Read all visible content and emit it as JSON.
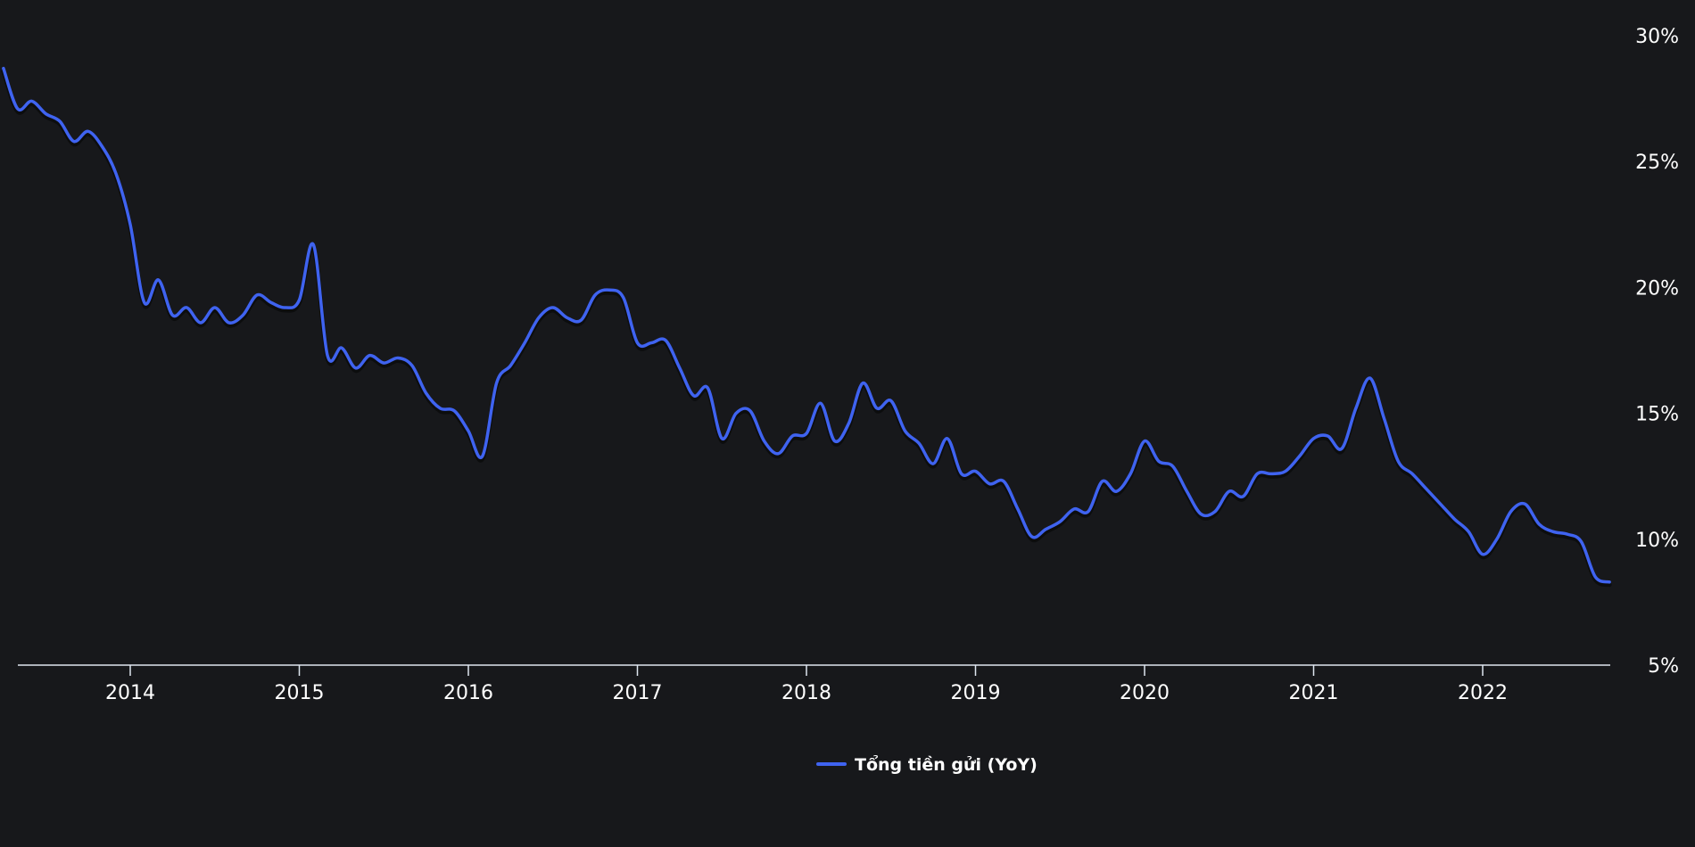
{
  "chart_data": {
    "type": "line",
    "x_axis": {
      "type": "date",
      "range": [
        "2013-04",
        "2022-10"
      ],
      "tick_labels": [
        "2014",
        "2015",
        "2016",
        "2017",
        "2018",
        "2019",
        "2020",
        "2021",
        "2022"
      ]
    },
    "y_axis": {
      "position": "right",
      "range": [
        5,
        30
      ],
      "ticks": [
        5,
        10,
        15,
        20,
        25,
        30
      ],
      "tick_labels": [
        "5%",
        "10%",
        "15%",
        "20%",
        "25%",
        "30%"
      ]
    },
    "grid": false,
    "legend": {
      "placement": "bottom-center"
    },
    "series": [
      {
        "name": "Tổng tiền gửi (YoY)",
        "color": "#3f63f0",
        "points": [
          [
            "2013-04",
            28.7
          ],
          [
            "2013-05",
            27.1
          ],
          [
            "2013-06",
            27.4
          ],
          [
            "2013-07",
            26.9
          ],
          [
            "2013-08",
            26.6
          ],
          [
            "2013-09",
            25.8
          ],
          [
            "2013-10",
            26.2
          ],
          [
            "2013-11",
            25.6
          ],
          [
            "2013-12",
            24.5
          ],
          [
            "2014-01",
            22.5
          ],
          [
            "2014-02",
            19.4
          ],
          [
            "2014-03",
            20.3
          ],
          [
            "2014-04",
            18.9
          ],
          [
            "2014-05",
            19.2
          ],
          [
            "2014-06",
            18.6
          ],
          [
            "2014-07",
            19.2
          ],
          [
            "2014-08",
            18.6
          ],
          [
            "2014-09",
            18.9
          ],
          [
            "2014-10",
            19.7
          ],
          [
            "2014-11",
            19.4
          ],
          [
            "2014-12",
            19.2
          ],
          [
            "2015-01",
            19.5
          ],
          [
            "2015-02",
            21.7
          ],
          [
            "2015-03",
            17.3
          ],
          [
            "2015-04",
            17.6
          ],
          [
            "2015-05",
            16.8
          ],
          [
            "2015-06",
            17.3
          ],
          [
            "2015-07",
            17.0
          ],
          [
            "2015-08",
            17.2
          ],
          [
            "2015-09",
            16.9
          ],
          [
            "2015-10",
            15.8
          ],
          [
            "2015-11",
            15.2
          ],
          [
            "2015-12",
            15.1
          ],
          [
            "2016-01",
            14.3
          ],
          [
            "2016-02",
            13.3
          ],
          [
            "2016-03",
            16.2
          ],
          [
            "2016-04",
            16.9
          ],
          [
            "2016-05",
            17.8
          ],
          [
            "2016-06",
            18.8
          ],
          [
            "2016-07",
            19.2
          ],
          [
            "2016-08",
            18.8
          ],
          [
            "2016-09",
            18.7
          ],
          [
            "2016-10",
            19.7
          ],
          [
            "2016-11",
            19.9
          ],
          [
            "2016-12",
            19.6
          ],
          [
            "2017-01",
            17.8
          ],
          [
            "2017-02",
            17.8
          ],
          [
            "2017-03",
            17.9
          ],
          [
            "2017-04",
            16.8
          ],
          [
            "2017-05",
            15.7
          ],
          [
            "2017-06",
            16.0
          ],
          [
            "2017-07",
            14.0
          ],
          [
            "2017-08",
            15.0
          ],
          [
            "2017-09",
            15.1
          ],
          [
            "2017-10",
            13.9
          ],
          [
            "2017-11",
            13.4
          ],
          [
            "2017-12",
            14.1
          ],
          [
            "2018-01",
            14.2
          ],
          [
            "2018-02",
            15.4
          ],
          [
            "2018-03",
            13.9
          ],
          [
            "2018-04",
            14.6
          ],
          [
            "2018-05",
            16.2
          ],
          [
            "2018-06",
            15.2
          ],
          [
            "2018-07",
            15.5
          ],
          [
            "2018-08",
            14.3
          ],
          [
            "2018-09",
            13.8
          ],
          [
            "2018-10",
            13.0
          ],
          [
            "2018-11",
            14.0
          ],
          [
            "2018-12",
            12.6
          ],
          [
            "2019-01",
            12.7
          ],
          [
            "2019-02",
            12.2
          ],
          [
            "2019-03",
            12.3
          ],
          [
            "2019-04",
            11.2
          ],
          [
            "2019-05",
            10.1
          ],
          [
            "2019-06",
            10.4
          ],
          [
            "2019-07",
            10.7
          ],
          [
            "2019-08",
            11.2
          ],
          [
            "2019-09",
            11.1
          ],
          [
            "2019-10",
            12.3
          ],
          [
            "2019-11",
            11.9
          ],
          [
            "2019-12",
            12.6
          ],
          [
            "2020-01",
            13.9
          ],
          [
            "2020-02",
            13.1
          ],
          [
            "2020-03",
            12.9
          ],
          [
            "2020-04",
            11.9
          ],
          [
            "2020-05",
            11.0
          ],
          [
            "2020-06",
            11.1
          ],
          [
            "2020-07",
            11.9
          ],
          [
            "2020-08",
            11.7
          ],
          [
            "2020-09",
            12.6
          ],
          [
            "2020-10",
            12.6
          ],
          [
            "2020-11",
            12.7
          ],
          [
            "2020-12",
            13.3
          ],
          [
            "2021-01",
            14.0
          ],
          [
            "2021-02",
            14.1
          ],
          [
            "2021-03",
            13.6
          ],
          [
            "2021-04",
            15.2
          ],
          [
            "2021-05",
            16.4
          ],
          [
            "2021-06",
            14.8
          ],
          [
            "2021-07",
            13.1
          ],
          [
            "2021-08",
            12.6
          ],
          [
            "2021-09",
            12.0
          ],
          [
            "2021-10",
            11.4
          ],
          [
            "2021-11",
            10.8
          ],
          [
            "2021-12",
            10.3
          ],
          [
            "2022-01",
            9.4
          ],
          [
            "2022-02",
            10.0
          ],
          [
            "2022-03",
            11.1
          ],
          [
            "2022-04",
            11.4
          ],
          [
            "2022-05",
            10.6
          ],
          [
            "2022-06",
            10.3
          ],
          [
            "2022-07",
            10.2
          ],
          [
            "2022-08",
            9.9
          ],
          [
            "2022-09",
            8.5
          ],
          [
            "2022-10",
            8.3
          ]
        ]
      }
    ]
  }
}
